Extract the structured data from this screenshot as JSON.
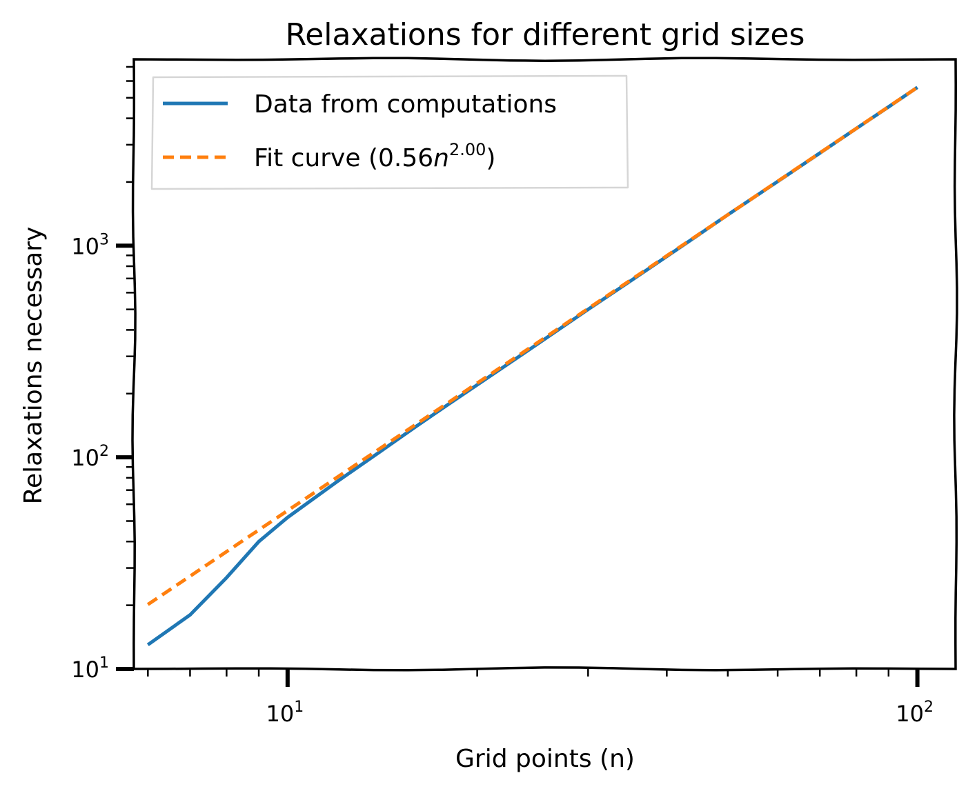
{
  "chart_data": {
    "type": "line",
    "title": "Relaxations for different grid sizes",
    "xlabel": "Grid points (n)",
    "ylabel": "Relaxations necessary",
    "xscale": "log",
    "yscale": "log",
    "xlim": [
      5.7,
      115
    ],
    "ylim": [
      10,
      7600
    ],
    "grid": false,
    "legend_position": "top-left",
    "x_major_ticks": [
      {
        "value": 10,
        "base": "10",
        "exp": "1"
      },
      {
        "value": 100,
        "base": "10",
        "exp": "2"
      }
    ],
    "y_major_ticks": [
      {
        "value": 10,
        "base": "10",
        "exp": "1"
      },
      {
        "value": 100,
        "base": "10",
        "exp": "2"
      },
      {
        "value": 1000,
        "base": "10",
        "exp": "3"
      }
    ],
    "series": [
      {
        "name": "Data from computations",
        "color": "#1f77b4",
        "style": "solid",
        "x": [
          6,
          7,
          8,
          9,
          10,
          12,
          14,
          16,
          18,
          20,
          25,
          30,
          35,
          40,
          45,
          50,
          60,
          70,
          80,
          90,
          100
        ],
        "y": [
          13,
          18,
          27,
          40,
          52,
          77,
          106,
          140,
          178,
          220,
          345,
          500,
          680,
          890,
          1130,
          1400,
          2010,
          2740,
          3580,
          4530,
          5600
        ]
      },
      {
        "name": "Fit curve",
        "legend_label_prefix": "Fit curve (0.56",
        "legend_label_var": "n",
        "legend_label_sup": "2.00",
        "legend_label_suffix": ")",
        "color": "#ff7f0e",
        "style": "dashed",
        "coef": 0.56,
        "exponent": 2.0
      }
    ]
  }
}
